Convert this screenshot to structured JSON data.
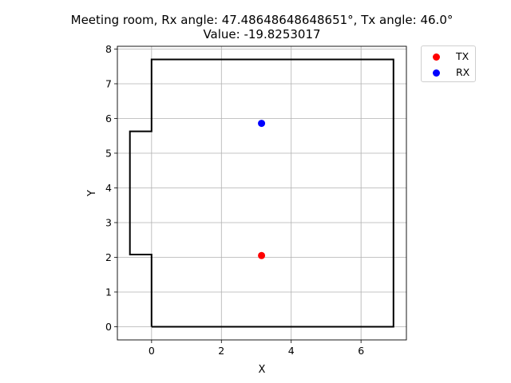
{
  "title": {
    "line1": "Meeting room, Rx angle: 47.48648648648651°, Tx angle: 46.0°",
    "line2": "Value: -19.8253017"
  },
  "chart_data": {
    "type": "scatter",
    "xlabel": "X",
    "ylabel": "Y",
    "xlim": [
      -0.98,
      7.3
    ],
    "ylim": [
      -0.38,
      8.08
    ],
    "xticks": [
      0,
      2,
      4,
      6
    ],
    "yticks": [
      0,
      1,
      2,
      3,
      4,
      5,
      6,
      7,
      8
    ],
    "grid": true,
    "legend_position": "outside-top-right",
    "room_outline": {
      "color": "#000000",
      "points": [
        [
          0,
          0
        ],
        [
          6.93,
          0
        ],
        [
          6.93,
          7.7
        ],
        [
          0,
          7.7
        ],
        [
          0,
          5.63
        ],
        [
          -0.62,
          5.63
        ],
        [
          -0.62,
          2.08
        ],
        [
          0,
          2.08
        ],
        [
          0,
          0
        ]
      ]
    },
    "series": [
      {
        "name": "TX",
        "color": "#ff0000",
        "points": [
          [
            3.15,
            2.05
          ]
        ]
      },
      {
        "name": "RX",
        "color": "#0000ff",
        "points": [
          [
            3.15,
            5.86
          ]
        ]
      }
    ]
  }
}
